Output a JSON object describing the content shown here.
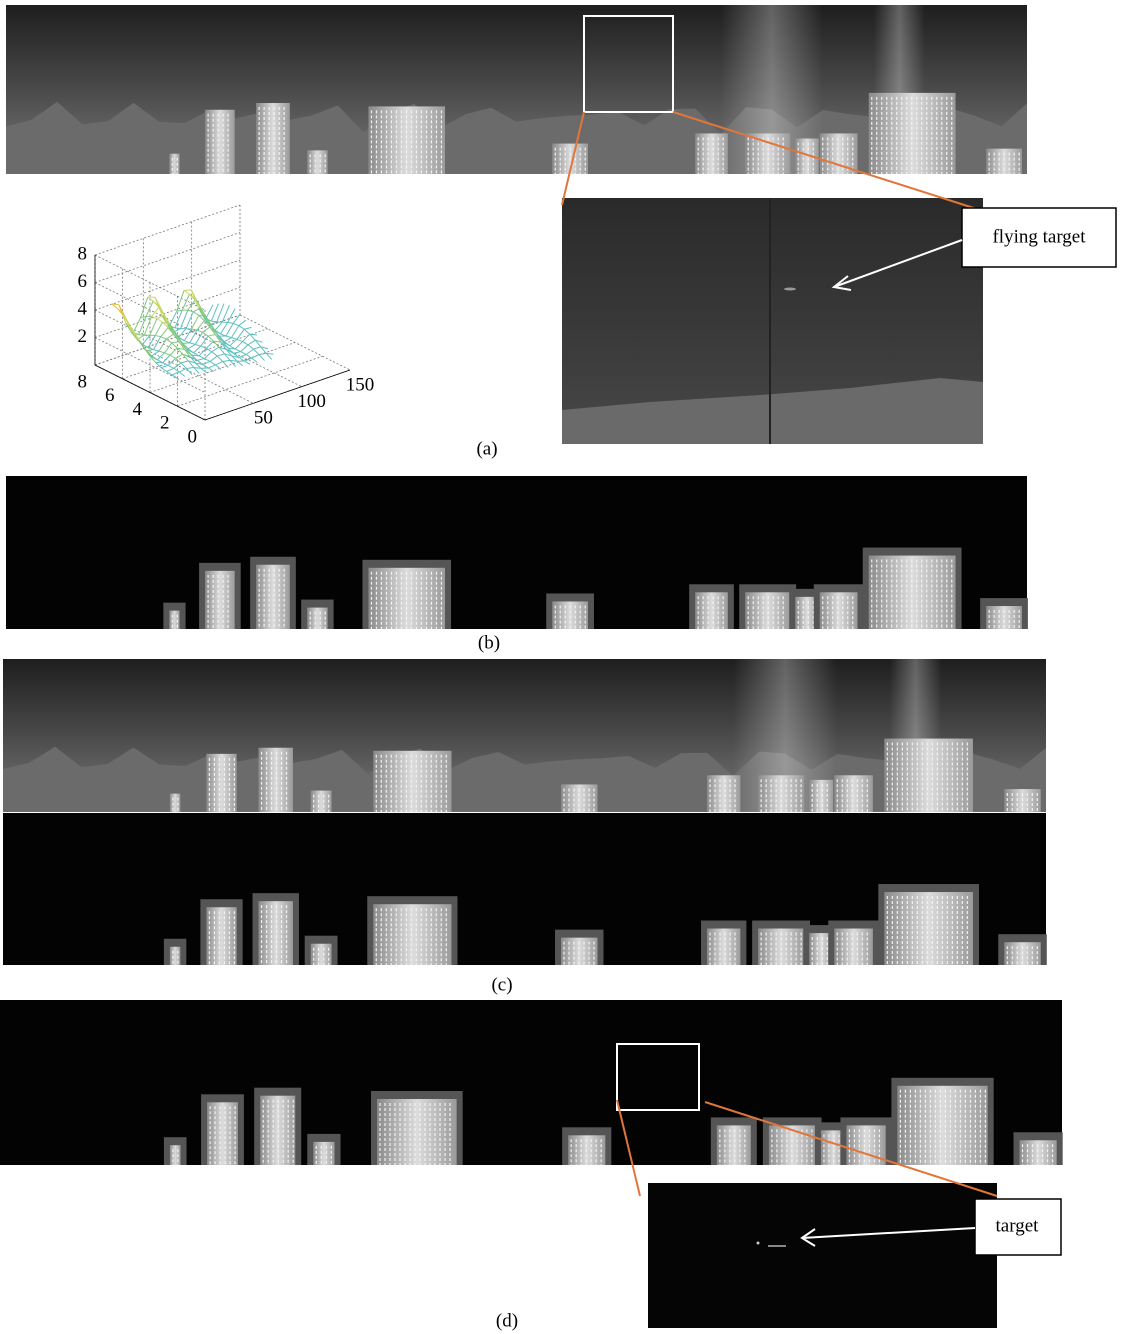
{
  "figure": {
    "panel_labels": [
      "(a)",
      "(b)",
      "(c)",
      "(d)"
    ],
    "annotations": {
      "flying_target": "flying target",
      "target": "target"
    },
    "surface_plot": {
      "z_ticks": [
        "8",
        "6",
        "4",
        "2"
      ],
      "y_ticks": [
        "8",
        "6",
        "4",
        "2",
        "0"
      ],
      "x_ticks": [
        "50",
        "100",
        "150"
      ]
    }
  }
}
